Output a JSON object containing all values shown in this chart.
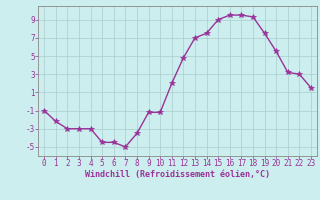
{
  "x": [
    0,
    1,
    2,
    3,
    4,
    5,
    6,
    7,
    8,
    9,
    10,
    11,
    12,
    13,
    14,
    15,
    16,
    17,
    18,
    19,
    20,
    21,
    22,
    23
  ],
  "y": [
    -1.0,
    -2.2,
    -3.0,
    -3.0,
    -3.0,
    -4.5,
    -4.5,
    -5.0,
    -3.5,
    -1.2,
    -1.2,
    2.0,
    4.8,
    7.0,
    7.5,
    9.0,
    9.5,
    9.5,
    9.3,
    7.5,
    5.5,
    3.2,
    3.0,
    1.5
  ],
  "line_color": "#993399",
  "marker_color": "#993399",
  "bg_color": "#cceeee",
  "grid_color": "#aacccc",
  "xlabel": "Windchill (Refroidissement éolien,°C)",
  "xlabel_color": "#993399",
  "tick_color": "#993399",
  "spine_color": "#888888",
  "ylim": [
    -6,
    10.5
  ],
  "xlim": [
    -0.5,
    23.5
  ],
  "yticks": [
    -5,
    -3,
    -1,
    1,
    3,
    5,
    7,
    9
  ],
  "xticks": [
    0,
    1,
    2,
    3,
    4,
    5,
    6,
    7,
    8,
    9,
    10,
    11,
    12,
    13,
    14,
    15,
    16,
    17,
    18,
    19,
    20,
    21,
    22,
    23
  ],
  "marker": "*",
  "markersize": 4,
  "linewidth": 1.0,
  "tick_fontsize": 5.5,
  "xlabel_fontsize": 6.0
}
